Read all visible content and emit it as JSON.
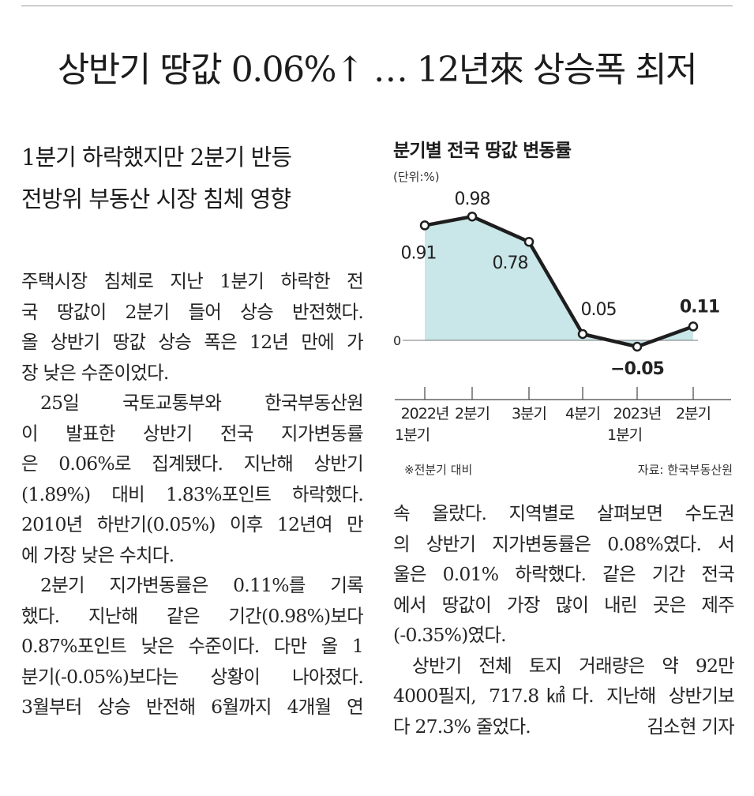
{
  "headline": "상반기 땅값 0.06%↑ … 12년來 상승폭 최저",
  "subheads": [
    "1분기 하락했지만 2분기 반등",
    "전방위 부동산 시장 침체 영향"
  ],
  "body_left": [
    {
      "text": "주택시장 침체로 지난 1분기 하락한 전",
      "indent": false,
      "justify": true
    },
    {
      "text": "국 땅값이 2분기 들어 상승 반전했다.",
      "indent": false,
      "justify": true
    },
    {
      "text": "올 상반기 땅값 상승 폭은 12년 만에 가",
      "indent": false,
      "justify": true
    },
    {
      "text": "장 낮은 수준이었다.",
      "indent": false,
      "justify": false
    },
    {
      "text": "25일 국토교통부와 한국부동산원",
      "indent": true,
      "justify": true
    },
    {
      "text": "이 발표한 상반기 전국 지가변동률",
      "indent": false,
      "justify": true
    },
    {
      "text": "은 0.06%로 집계됐다. 지난해 상반기",
      "indent": false,
      "justify": true
    },
    {
      "text": "(1.89%) 대비 1.83%포인트 하락했다.",
      "indent": false,
      "justify": true
    },
    {
      "text": "2010년 하반기(0.05%) 이후 12년여 만",
      "indent": false,
      "justify": true
    },
    {
      "text": "에 가장 낮은 수치다.",
      "indent": false,
      "justify": false
    },
    {
      "text": "2분기 지가변동률은 0.11%를 기록",
      "indent": true,
      "justify": true
    },
    {
      "text": "했다. 지난해 같은 기간(0.98%)보다",
      "indent": false,
      "justify": true
    },
    {
      "text": "0.87%포인트 낮은 수준이다. 다만 올 1",
      "indent": false,
      "justify": true
    },
    {
      "text": "분기(-0.05%)보다는 상황이 나아졌다.",
      "indent": false,
      "justify": true
    },
    {
      "text": "3월부터 상승 반전해 6월까지 4개월 연",
      "indent": false,
      "justify": true
    }
  ],
  "body_right": [
    {
      "text": "속 올랐다. 지역별로 살펴보면 수도권",
      "indent": false,
      "justify": true
    },
    {
      "text": "의 상반기 지가변동률은 0.08%였다. 서",
      "indent": false,
      "justify": true
    },
    {
      "text": "울은 0.01% 하락했다. 같은 기간 전국",
      "indent": false,
      "justify": true
    },
    {
      "text": "에서 땅값이 가장 많이 내린 곳은 제주",
      "indent": false,
      "justify": true
    },
    {
      "text": "(-0.35%)였다.",
      "indent": false,
      "justify": false
    },
    {
      "text": "상반기 전체 토지 거래량은 약 92만",
      "indent": true,
      "justify": true
    },
    {
      "text": "4000필지, 717.8㎢다. 지난해 상반기보",
      "indent": false,
      "justify": true
    },
    {
      "text": "다 27.3% 줄었다.",
      "indent": false,
      "justify": false
    }
  ],
  "byline": "김소현 기자",
  "chart_data": {
    "type": "area",
    "title": "분기별 전국 땅값 변동률",
    "unit": "(단위:%)",
    "categories": [
      [
        "2022년",
        "1분기"
      ],
      [
        "2분기"
      ],
      [
        "3분기"
      ],
      [
        "4분기"
      ],
      [
        "2023년",
        "1분기"
      ],
      [
        "2분기"
      ]
    ],
    "values": [
      0.91,
      0.98,
      0.78,
      0.05,
      -0.05,
      0.11
    ],
    "labels": [
      "0.91",
      "0.98",
      "0.78",
      "0.05",
      "−0.05",
      "0.11"
    ],
    "zero_label": "0",
    "ylim": [
      -0.15,
      1.1
    ],
    "note": "※전분기 대비",
    "source": "자료: 한국부동산원",
    "colors": {
      "fill": "#c9e6e8",
      "line": "#1e1e1e",
      "marker_fill": "#ffffff",
      "text": "#222222"
    }
  }
}
